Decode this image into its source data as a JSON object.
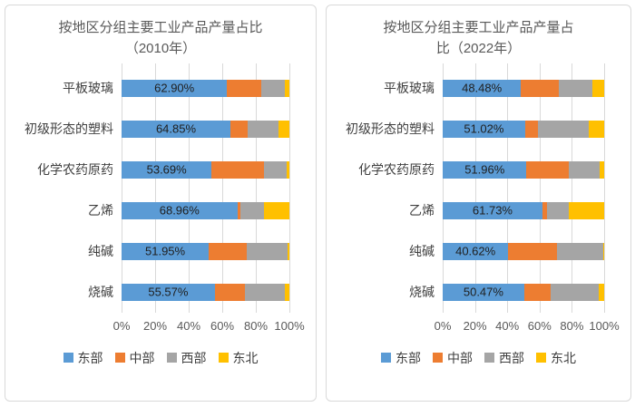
{
  "page": {
    "background": "#ffffff",
    "card_border": "#d9d9d9"
  },
  "chart_data": [
    {
      "type": "bar",
      "orientation": "horizontal-stacked",
      "title": "按地区分组主要工业产品产量占比（2010年）",
      "title_lines": [
        "按地区分组主要工业产品产量占比",
        "（2010年）"
      ],
      "categories": [
        "平板玻璃",
        "初级形态的塑料",
        "化学农药原药",
        "乙烯",
        "纯碱",
        "烧碱"
      ],
      "series": [
        {
          "name": "东部",
          "color": "#5B9BD5",
          "values": [
            62.9,
            64.85,
            53.69,
            68.96,
            51.95,
            55.57
          ],
          "labels": [
            "62.90%",
            "64.85%",
            "53.69%",
            "68.96%",
            "51.95%",
            "55.57%"
          ]
        },
        {
          "name": "中部",
          "color": "#ED7D31",
          "values": [
            20.4,
            10.55,
            31.31,
            2.04,
            22.5,
            17.9
          ]
        },
        {
          "name": "西部",
          "color": "#A5A5A5",
          "values": [
            14.0,
            18.1,
            13.3,
            14.0,
            24.5,
            23.8
          ]
        },
        {
          "name": "东北",
          "color": "#FFC000",
          "values": [
            2.7,
            6.5,
            1.7,
            15.0,
            1.05,
            2.73
          ]
        }
      ],
      "x_ticks": [
        "0%",
        "20%",
        "40%",
        "60%",
        "80%",
        "100%"
      ],
      "xlim": [
        0,
        100
      ],
      "grid": true,
      "legend_position": "bottom",
      "value_labels_on": "东部"
    },
    {
      "type": "bar",
      "orientation": "horizontal-stacked",
      "title": "按地区分组主要工业产品产量占比（2022年）",
      "title_lines": [
        "按地区分组主要工业产品产量占",
        "比（2022年）"
      ],
      "categories": [
        "平板玻璃",
        "初级形态的塑料",
        "化学农药原药",
        "乙烯",
        "纯碱",
        "烧碱"
      ],
      "series": [
        {
          "name": "东部",
          "color": "#5B9BD5",
          "values": [
            48.48,
            51.02,
            51.96,
            61.73,
            40.62,
            50.47
          ],
          "labels": [
            "48.48%",
            "51.02%",
            "51.96%",
            "61.73%",
            "40.62%",
            "50.47%"
          ]
        },
        {
          "name": "中部",
          "color": "#ED7D31",
          "values": [
            23.7,
            7.9,
            26.0,
            2.9,
            30.4,
            16.4
          ]
        },
        {
          "name": "西部",
          "color": "#A5A5A5",
          "values": [
            20.6,
            31.4,
            19.0,
            13.7,
            28.5,
            30.0
          ]
        },
        {
          "name": "东北",
          "color": "#FFC000",
          "values": [
            7.22,
            9.68,
            3.04,
            21.67,
            0.48,
            3.13
          ]
        }
      ],
      "x_ticks": [
        "0%",
        "20%",
        "40%",
        "60%",
        "80%",
        "100%"
      ],
      "xlim": [
        0,
        100
      ],
      "grid": true,
      "legend_position": "bottom",
      "value_labels_on": "东部"
    }
  ]
}
